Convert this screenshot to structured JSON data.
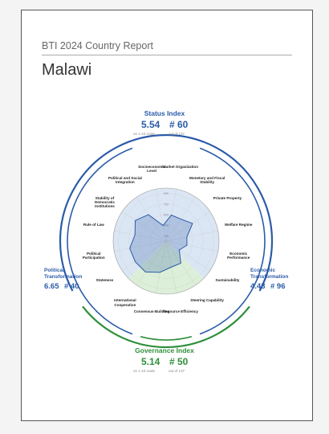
{
  "header": {
    "series_title": "BTI 2024 Country Report",
    "country": "Malawi"
  },
  "indices": {
    "status": {
      "title": "Status Index",
      "score": "5.54",
      "rank": "# 60",
      "scale_note": "on 1-10 scale",
      "rank_note": "out of 137"
    },
    "political": {
      "title": "Political Transformation",
      "score": "6.65",
      "rank": "# 40"
    },
    "economic": {
      "title": "Economic Transformation",
      "score": "4.43",
      "rank": "# 96"
    },
    "governance": {
      "title": "Governance Index",
      "score": "5.14",
      "rank": "# 50",
      "scale_note": "on 1-10 scale",
      "rank_note": "out of 137"
    }
  },
  "radar": {
    "type": "radar",
    "criteria": [
      "Market Organization",
      "Monetary and Fiscal Stability",
      "Private Property",
      "Welfare Regime",
      "Economic Performance",
      "Sustainability",
      "Steering Capability",
      "Resource Efficiency",
      "Consensus-Building",
      "International Cooperation",
      "Stateness",
      "Political Participation",
      "Rule of Law",
      "Stability of Democratic Institutions",
      "Political and Social Integration",
      "Socioeconomic Level"
    ],
    "values": [
      5,
      5,
      6,
      4,
      4,
      3,
      5,
      5,
      6,
      7,
      7,
      7,
      6,
      7,
      6,
      3
    ],
    "sector_colors": [
      "#dbe6f4",
      "#dbe6f4",
      "#dbe6f4",
      "#dbe6f4",
      "#dbe6f4",
      "#dbe6f4",
      "#dcefd8",
      "#dcefd8",
      "#dcefd8",
      "#dcefd8",
      "#dbe6f4",
      "#dbe6f4",
      "#dbe6f4",
      "#dbe6f4",
      "#dbe6f4",
      "#dbe6f4"
    ],
    "line_color": "#2b5ba8",
    "rlim": [
      0,
      10
    ],
    "rticks": [
      {
        "value": 1,
        "label": "1.0"
      },
      {
        "value": 3,
        "label": "3.0"
      },
      {
        "value": 5,
        "label": "5.0"
      },
      {
        "value": 7,
        "label": "7.0"
      },
      {
        "value": 9,
        "label": "9.0"
      }
    ]
  }
}
